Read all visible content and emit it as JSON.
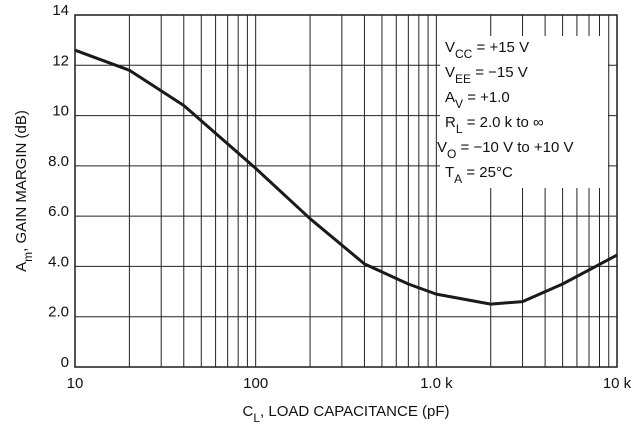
{
  "chart_data": {
    "type": "line",
    "xlabel": {
      "main": "C",
      "sub": "L",
      "rest": ", LOAD CAPACITANCE (pF)"
    },
    "ylabel": {
      "main": "A",
      "sub": "m",
      "rest": ", GAIN MARGIN (dB)"
    },
    "x": [
      10,
      20,
      40,
      100,
      200,
      400,
      700,
      1000,
      2000,
      3000,
      5000,
      10000
    ],
    "series": [
      {
        "color": "#1a1a1a",
        "values": [
          12.6,
          11.8,
          10.4,
          7.9,
          5.9,
          4.1,
          3.3,
          2.9,
          2.5,
          2.6,
          3.3,
          4.45
        ]
      }
    ],
    "xlog": true,
    "xlim": [
      10,
      10000
    ],
    "xticks": [
      10,
      100,
      {
        "value": 1000,
        "label": "1.0 k"
      },
      {
        "value": 10000,
        "label": "10 k"
      }
    ],
    "xminor": [
      20,
      30,
      40,
      50,
      60,
      70,
      80,
      90,
      200,
      300,
      400,
      500,
      600,
      700,
      800,
      900,
      2000,
      3000,
      4000,
      5000,
      6000,
      7000,
      8000,
      9000
    ],
    "ylim": [
      0,
      14
    ],
    "yticks": [
      0,
      {
        "value": 2,
        "label": "2.0"
      },
      {
        "value": 4,
        "label": "4.0"
      },
      {
        "value": 6,
        "label": "6.0"
      },
      {
        "value": 8,
        "label": "8.0"
      },
      10,
      12,
      14
    ],
    "grid": true,
    "annotations": [
      {
        "main": "V",
        "sub": "CC",
        "rest": " =  +15 V"
      },
      {
        "main": "V",
        "sub": "EE",
        "rest": " = −15 V"
      },
      {
        "main": "A",
        "sub": "V",
        "rest": " = +1.0"
      },
      {
        "main": "R",
        "sub": "L",
        "rest": " = 2.0 k to ∞"
      },
      {
        "main": "V",
        "sub": "O",
        "rest": " = −10 V to +10 V"
      },
      {
        "main": "T",
        "sub": "A",
        "rest": " = 25°C"
      }
    ]
  }
}
